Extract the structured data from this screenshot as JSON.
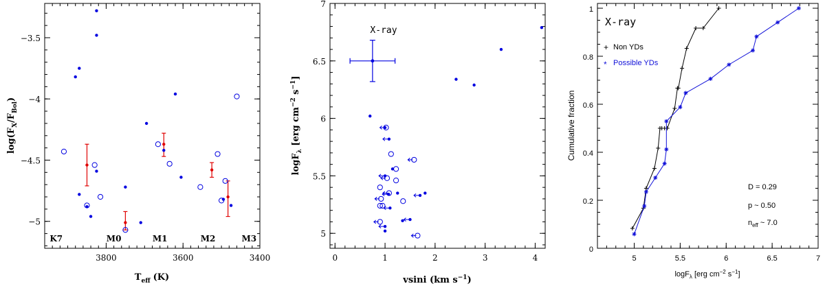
{
  "chart_data": [
    {
      "type": "scatter",
      "xlabel": "T",
      "xlabel_sub": "eff",
      "xlabel_unit": "(K)",
      "ylabel": "log(F",
      "ylabel_sub1": "X",
      "ylabel_mid": "/F",
      "ylabel_sub2": "Bol",
      "ylabel_end": ")",
      "xlim": [
        3960,
        3400
      ],
      "ylim": [
        -5.22,
        -3.22
      ],
      "xticks": [
        3800,
        3600,
        3400
      ],
      "xtick_labels": [
        "3800",
        "3600",
        "3400"
      ],
      "yticks": [
        -5,
        -4.5,
        -4,
        -3.5
      ],
      "ytick_labels": [
        "−5",
        "−4.5",
        "−4",
        "−3.5"
      ],
      "spectral_types": [
        {
          "label": "K7",
          "x": 3930
        },
        {
          "label": "M0",
          "x": 3780
        },
        {
          "label": "M1",
          "x": 3660
        },
        {
          "label": "M2",
          "x": 3535
        },
        {
          "label": "M3",
          "x": 3428
        }
      ],
      "filled": [
        {
          "x": 3825,
          "y": -3.28
        },
        {
          "x": 3825,
          "y": -3.48
        },
        {
          "x": 3880,
          "y": -3.82
        },
        {
          "x": 3870,
          "y": -3.75
        },
        {
          "x": 3620,
          "y": -3.96
        },
        {
          "x": 3695,
          "y": -4.2
        },
        {
          "x": 3650,
          "y": -4.42
        },
        {
          "x": 3825,
          "y": -4.59
        },
        {
          "x": 3605,
          "y": -4.64
        },
        {
          "x": 3750,
          "y": -4.72
        },
        {
          "x": 3870,
          "y": -4.78
        },
        {
          "x": 3850,
          "y": -4.88
        },
        {
          "x": 3840,
          "y": -4.96
        },
        {
          "x": 3495,
          "y": -4.82
        },
        {
          "x": 3475,
          "y": -4.87
        },
        {
          "x": 3710,
          "y": -5.01
        }
      ],
      "open": [
        {
          "x": 3910,
          "y": -4.43
        },
        {
          "x": 3830,
          "y": -4.54
        },
        {
          "x": 3815,
          "y": -4.8
        },
        {
          "x": 3850,
          "y": -4.87
        },
        {
          "x": 3750,
          "y": -5.07
        },
        {
          "x": 3665,
          "y": -4.37
        },
        {
          "x": 3635,
          "y": -4.53
        },
        {
          "x": 3555,
          "y": -4.72
        },
        {
          "x": 3510,
          "y": -4.45
        },
        {
          "x": 3490,
          "y": -4.67
        },
        {
          "x": 3460,
          "y": -3.98
        },
        {
          "x": 3500,
          "y": -4.83
        }
      ],
      "errorbars": [
        {
          "x": 3850,
          "y": -4.54,
          "lo": -4.71,
          "hi": -4.37
        },
        {
          "x": 3750,
          "y": -5.01,
          "lo": -5.07,
          "hi": -4.92
        },
        {
          "x": 3650,
          "y": -4.37,
          "lo": -4.47,
          "hi": -4.28
        },
        {
          "x": 3525,
          "y": -4.58,
          "lo": -4.64,
          "hi": -4.52
        },
        {
          "x": 3483,
          "y": -4.8,
          "lo": -4.96,
          "hi": -4.67
        }
      ],
      "colors": {
        "points": "#0000e0",
        "errors": "#e00000"
      }
    },
    {
      "type": "scatter",
      "title": "X-ray",
      "xlabel": "vsini (km s",
      "xlabel_sup": "−1",
      "xlabel_end": ")",
      "ylabel": "logF",
      "ylabel_sub": "λ",
      "ylabel_unit": " [erg cm",
      "ylabel_sup1": "−2",
      "ylabel_mid": " s",
      "ylabel_sup2": "−1",
      "ylabel_end": "]",
      "xlim": [
        -0.1,
        4.2
      ],
      "ylim": [
        4.87,
        7.0
      ],
      "xticks": [
        0,
        1,
        2,
        3,
        4
      ],
      "xtick_labels": [
        "0",
        "1",
        "2",
        "3",
        "4"
      ],
      "yticks": [
        5,
        5.5,
        6,
        6.5,
        7
      ],
      "ytick_labels": [
        "5",
        "5.5",
        "6",
        "6.5",
        "7"
      ],
      "typical_error": {
        "x": 0.75,
        "y": 6.5,
        "xerr": 0.45,
        "yerr": 0.18
      },
      "filled": [
        {
          "x": 4.13,
          "y": 6.79
        },
        {
          "x": 3.32,
          "y": 6.6
        },
        {
          "x": 2.42,
          "y": 6.34
        },
        {
          "x": 2.78,
          "y": 6.29
        },
        {
          "x": 0.7,
          "y": 6.02
        },
        {
          "x": 1.0,
          "y": 5.92
        },
        {
          "x": 1.08,
          "y": 5.82
        },
        {
          "x": 1.15,
          "y": 5.56
        },
        {
          "x": 1.25,
          "y": 5.35
        },
        {
          "x": 1.8,
          "y": 5.35
        },
        {
          "x": 1.7,
          "y": 5.33
        },
        {
          "x": 1.07,
          "y": 5.34
        },
        {
          "x": 1.0,
          "y": 5.5
        },
        {
          "x": 1.1,
          "y": 5.22
        },
        {
          "x": 1.5,
          "y": 5.12
        },
        {
          "x": 1.35,
          "y": 5.11
        },
        {
          "x": 1.0,
          "y": 5.06
        },
        {
          "x": 1.0,
          "y": 5.02
        }
      ],
      "open": [
        {
          "x": 1.02,
          "y": 5.92
        },
        {
          "x": 1.12,
          "y": 5.69
        },
        {
          "x": 1.58,
          "y": 5.64
        },
        {
          "x": 1.22,
          "y": 5.56
        },
        {
          "x": 1.04,
          "y": 5.48
        },
        {
          "x": 1.22,
          "y": 5.46
        },
        {
          "x": 0.9,
          "y": 5.4
        },
        {
          "x": 1.08,
          "y": 5.35
        },
        {
          "x": 0.92,
          "y": 5.3
        },
        {
          "x": 1.36,
          "y": 5.28
        },
        {
          "x": 0.9,
          "y": 5.24
        },
        {
          "x": 0.95,
          "y": 5.24
        },
        {
          "x": 0.9,
          "y": 5.1
        },
        {
          "x": 1.65,
          "y": 4.98
        }
      ],
      "upper_limit_arrows": [
        {
          "x": 1.58,
          "y": 5.64
        },
        {
          "x": 1.04,
          "y": 5.48
        },
        {
          "x": 1.08,
          "y": 5.35
        },
        {
          "x": 0.9,
          "y": 5.1
        },
        {
          "x": 1.65,
          "y": 4.98
        },
        {
          "x": 1.7,
          "y": 5.33
        },
        {
          "x": 1.5,
          "y": 5.12
        },
        {
          "x": 1.0,
          "y": 5.5
        },
        {
          "x": 1.02,
          "y": 5.92
        },
        {
          "x": 1.08,
          "y": 5.82
        },
        {
          "x": 1.07,
          "y": 5.34
        },
        {
          "x": 1.0,
          "y": 5.06
        },
        {
          "x": 1.1,
          "y": 5.22
        },
        {
          "x": 0.92,
          "y": 5.3
        }
      ],
      "colors": {
        "points": "#0000e0"
      }
    },
    {
      "type": "line",
      "title": "X-ray",
      "xlabel": "logF",
      "xlabel_sub": "λ",
      "xlabel_unit": " [erg cm",
      "xlabel_sup1": "−2",
      "xlabel_mid": " s",
      "xlabel_sup2": "−1",
      "xlabel_end": "]",
      "ylabel": "Cumulative fraction",
      "xlim": [
        4.6,
        7.0
      ],
      "ylim": [
        0,
        1.02
      ],
      "xticks": [
        5,
        5.5,
        6,
        6.5,
        7
      ],
      "xtick_labels": [
        "5",
        "5.5",
        "6",
        "6.5",
        "7"
      ],
      "yticks": [
        0,
        0.2,
        0.4,
        0.6,
        0.8,
        1
      ],
      "ytick_labels": [
        "0",
        "0.2",
        "0.4",
        "0.6",
        "0.8",
        "1"
      ],
      "series": [
        {
          "name": "Non YDs",
          "color": "#000000",
          "marker": "+",
          "x": [
            4.98,
            5.1,
            5.13,
            5.22,
            5.26,
            5.28,
            5.28,
            5.3,
            5.33,
            5.36,
            5.44,
            5.47,
            5.48,
            5.52,
            5.57,
            5.67,
            5.75,
            5.92
          ],
          "y": [
            0.083,
            0.167,
            0.25,
            0.333,
            0.417,
            0.5,
            0.5,
            0.5,
            0.5,
            0.5,
            0.583,
            0.667,
            0.667,
            0.75,
            0.833,
            0.917,
            0.917,
            1.0
          ]
        },
        {
          "name": "Possible YDs",
          "color": "#1010d8",
          "marker": "*",
          "x": [
            5.0,
            5.11,
            5.13,
            5.23,
            5.33,
            5.35,
            5.35,
            5.5,
            5.56,
            5.83,
            6.03,
            6.29,
            6.33,
            6.56,
            6.79
          ],
          "y": [
            0.059,
            0.176,
            0.235,
            0.294,
            0.353,
            0.412,
            0.529,
            0.588,
            0.647,
            0.706,
            0.765,
            0.824,
            0.882,
            0.941,
            1.0
          ]
        }
      ],
      "legend_position": "top-left",
      "stats": {
        "D_label": "D = 0.29",
        "p_label": "p ~ 0.50",
        "n_prefix": "n",
        "n_sub": "eff",
        "n_suffix": " ~ 7.0"
      }
    }
  ]
}
